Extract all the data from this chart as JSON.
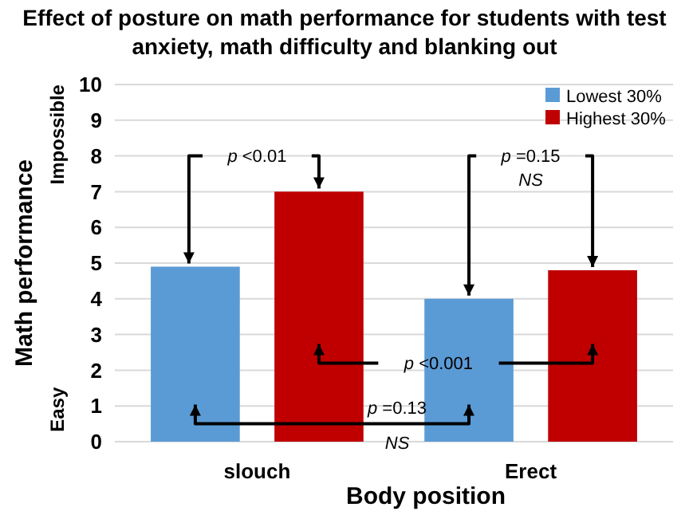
{
  "chart_data": {
    "type": "bar",
    "title": "Effect of posture on math performance for students with test anxiety, math difficulty and blanking out",
    "xlabel": "Body position",
    "ylabel": "Math performance",
    "categories": [
      "slouch",
      "Erect"
    ],
    "series": [
      {
        "name": "Lowest 30%",
        "color": "#5b9bd5",
        "values": [
          4.9,
          4.0
        ]
      },
      {
        "name": "Highest 30%",
        "color": "#c00000",
        "values": [
          7.0,
          4.8
        ]
      }
    ],
    "ylim": [
      0,
      10
    ],
    "yticks": [
      0,
      1,
      2,
      3,
      4,
      5,
      6,
      7,
      8,
      9,
      10
    ],
    "grid": "y",
    "legend": "top right",
    "annotations": [
      "Impossible",
      "Easy",
      "p <0.01",
      "p =0.15",
      "NS",
      "p <0.001",
      "p =0.13",
      "NS"
    ]
  }
}
